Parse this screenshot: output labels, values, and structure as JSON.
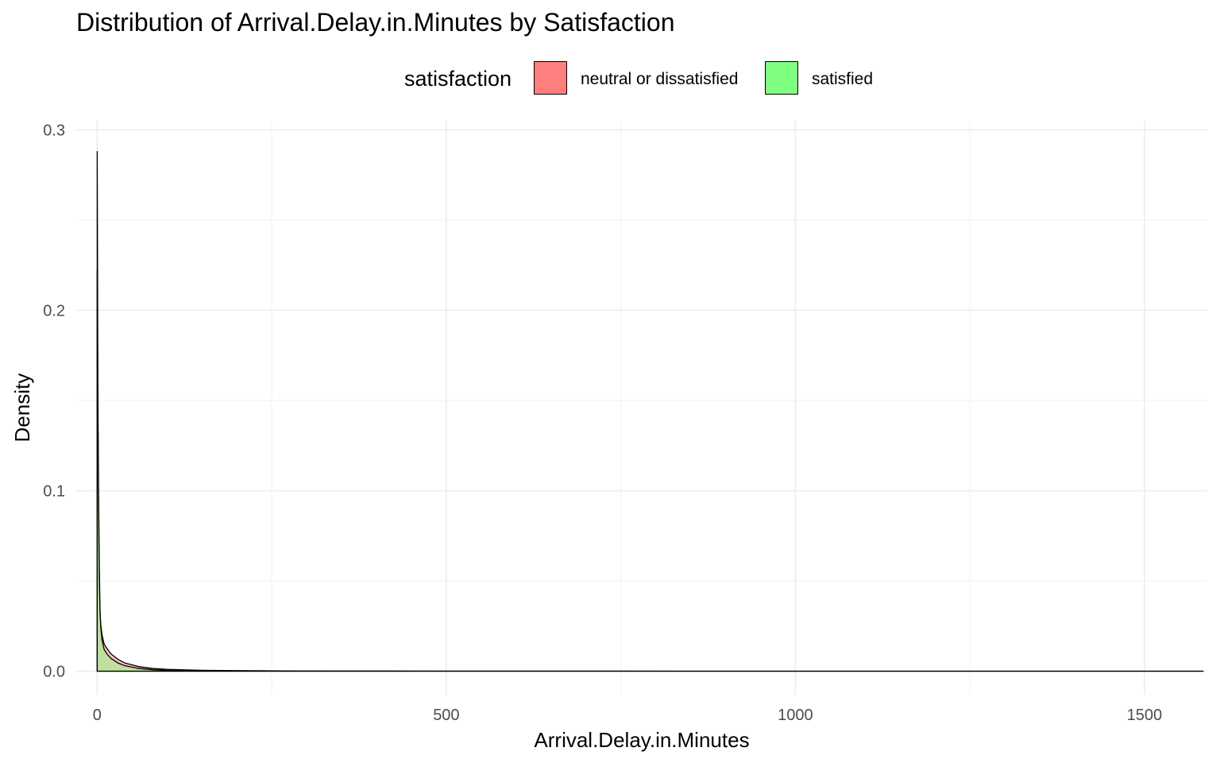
{
  "chart_data": {
    "type": "area",
    "title": "Distribution of Arrival.Delay.in.Minutes by Satisfaction",
    "xlabel": "Arrival.Delay.in.Minutes",
    "ylabel": "Density",
    "xlim": [
      -30,
      1590
    ],
    "ylim": [
      -0.013,
      0.305
    ],
    "x_ticks": [
      0,
      500,
      1000,
      1500
    ],
    "x_tick_labels": [
      "0",
      "500",
      "1000",
      "1500"
    ],
    "y_ticks": [
      0.0,
      0.1,
      0.2,
      0.3
    ],
    "y_tick_labels": [
      "0.0",
      "0.1",
      "0.2",
      "0.3"
    ],
    "grid": true,
    "legend": {
      "title": "satisfaction",
      "position": "top",
      "entries": [
        "neutral or dissatisfied",
        "satisfied"
      ]
    },
    "series": [
      {
        "name": "neutral or dissatisfied",
        "color": "#ff7f7f",
        "x": [
          0,
          0.5,
          1,
          2,
          3,
          4,
          5,
          7,
          10,
          15,
          20,
          30,
          40,
          60,
          80,
          100,
          150,
          200,
          300,
          500,
          1000,
          1584
        ],
        "values": [
          0.288,
          0.23,
          0.14,
          0.085,
          0.05,
          0.033,
          0.026,
          0.02,
          0.015,
          0.012,
          0.0095,
          0.0065,
          0.0045,
          0.0025,
          0.0015,
          0.001,
          0.0005,
          0.0003,
          0.0001,
          3e-05,
          0.0,
          0.0
        ]
      },
      {
        "name": "satisfied",
        "color": "#7fff7f",
        "x": [
          0,
          0.5,
          1,
          2,
          3,
          4,
          5,
          7,
          10,
          15,
          20,
          30,
          40,
          60,
          80,
          100,
          150,
          200,
          300,
          500,
          1000,
          1584
        ],
        "values": [
          0.222,
          0.19,
          0.155,
          0.1,
          0.06,
          0.035,
          0.025,
          0.017,
          0.012,
          0.009,
          0.007,
          0.0045,
          0.003,
          0.0015,
          0.0008,
          0.0005,
          0.0002,
          0.0001,
          3e-05,
          0.0,
          0.0,
          0.0
        ]
      }
    ]
  }
}
